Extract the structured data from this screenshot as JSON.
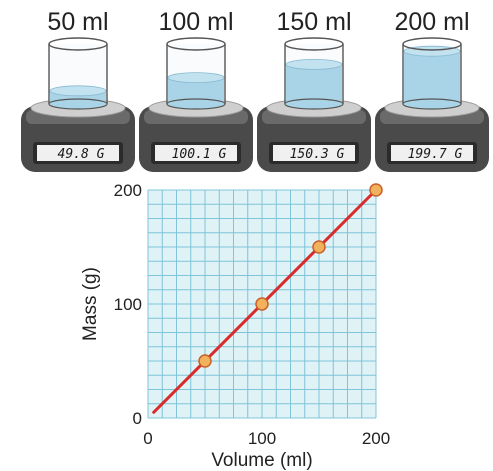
{
  "colors": {
    "water": "#a9d3e6",
    "water_edge": "#86b9d1",
    "grid_bg": "#dff3f7",
    "grid_line": "#7fc4d8",
    "line": "#d92b2b",
    "point_fill": "#f2b15c",
    "point_edge": "#c9612a",
    "scale_body": "#4a4a4a",
    "scale_plate": "#cfcfcf",
    "lcd_bg": "#f0f0f0"
  },
  "beakers": [
    {
      "volume_label": "50 ml",
      "display": "49.8 G",
      "fill_fraction": 0.25
    },
    {
      "volume_label": "100 ml",
      "display": "100.1 G",
      "fill_fraction": 0.5
    },
    {
      "volume_label": "150 ml",
      "display": "150.3 G",
      "fill_fraction": 0.75
    },
    {
      "volume_label": "200 ml",
      "display": "199.7 G",
      "fill_fraction": 1.0
    }
  ],
  "chart_data": {
    "type": "line",
    "xlabel": "Volume (ml)",
    "ylabel": "Mass (g)",
    "xlim": [
      0,
      200
    ],
    "ylim": [
      0,
      200
    ],
    "x_ticks": [
      "0",
      "100",
      "200"
    ],
    "y_ticks": [
      "0",
      "100",
      "200"
    ],
    "grid": true,
    "points": [
      {
        "x": 50,
        "y": 50
      },
      {
        "x": 100,
        "y": 100
      },
      {
        "x": 150,
        "y": 150
      },
      {
        "x": 200,
        "y": 200
      }
    ],
    "line": [
      {
        "x": 5,
        "y": 5
      },
      {
        "x": 200,
        "y": 200
      }
    ]
  }
}
